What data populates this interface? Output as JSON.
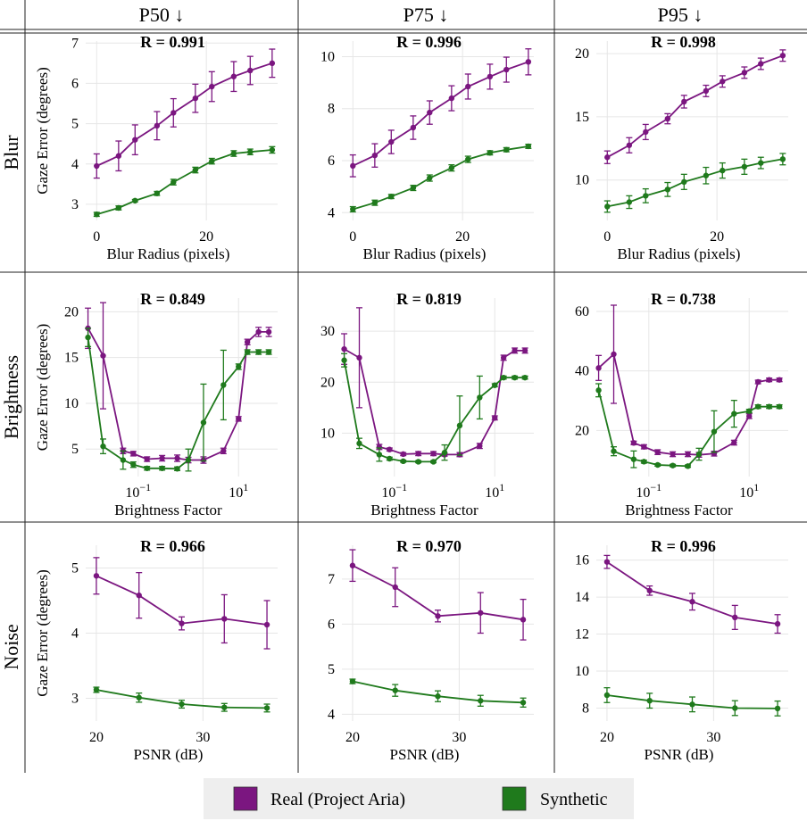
{
  "columns": [
    "P50 ↓",
    "P75 ↓",
    "P95 ↓"
  ],
  "rows": [
    "Blur",
    "Brightness",
    "Noise"
  ],
  "colors": {
    "real": "#7B1680",
    "synthetic": "#1F7A1C",
    "grid": "#e6e6e6",
    "legend_bg": "#eeeeee"
  },
  "legend": {
    "items": [
      {
        "key": "real",
        "label": "Real (Project Aria)"
      },
      {
        "key": "synthetic",
        "label": "Synthetic"
      }
    ]
  },
  "chart_data": [
    {
      "id": "blur-p50",
      "type": "line",
      "row": "Blur",
      "column": "P50 ↓",
      "title": "R = 0.991",
      "xlabel": "Blur Radius (pixels)",
      "ylabel": "Gaze Error (degrees)",
      "xscale": "linear",
      "xlim": [
        -2,
        33
      ],
      "ylim": [
        2.6,
        7.05
      ],
      "xticks": [
        0,
        20
      ],
      "yticks": [
        3,
        4,
        5,
        6,
        7
      ],
      "x": [
        0,
        4,
        7,
        11,
        14,
        18,
        21,
        25,
        28,
        32
      ],
      "series": [
        {
          "key": "real",
          "values": [
            3.95,
            4.2,
            4.6,
            4.95,
            5.27,
            5.63,
            5.92,
            6.17,
            6.32,
            6.5
          ],
          "errors": [
            0.3,
            0.37,
            0.37,
            0.35,
            0.35,
            0.35,
            0.37,
            0.37,
            0.35,
            0.35
          ]
        },
        {
          "key": "synthetic",
          "values": [
            2.75,
            2.91,
            3.09,
            3.27,
            3.55,
            3.85,
            4.07,
            4.26,
            4.3,
            4.35
          ],
          "errors": [
            0.05,
            0.05,
            0.03,
            0.05,
            0.07,
            0.07,
            0.07,
            0.07,
            0.07,
            0.08
          ]
        }
      ]
    },
    {
      "id": "blur-p75",
      "type": "line",
      "row": "Blur",
      "column": "P75 ↓",
      "title": "R = 0.996",
      "xlabel": "Blur Radius (pixels)",
      "ylabel": "",
      "xscale": "linear",
      "xlim": [
        -2,
        33
      ],
      "ylim": [
        3.7,
        10.6
      ],
      "xticks": [
        0,
        20
      ],
      "yticks": [
        4,
        6,
        8,
        10
      ],
      "x": [
        0,
        4,
        7,
        11,
        14,
        18,
        21,
        25,
        28,
        32
      ],
      "series": [
        {
          "key": "real",
          "values": [
            5.8,
            6.2,
            6.72,
            7.27,
            7.85,
            8.4,
            8.85,
            9.23,
            9.5,
            9.8
          ],
          "errors": [
            0.42,
            0.45,
            0.45,
            0.45,
            0.45,
            0.48,
            0.48,
            0.48,
            0.48,
            0.5
          ]
        },
        {
          "key": "synthetic",
          "values": [
            4.13,
            4.38,
            4.62,
            4.95,
            5.33,
            5.72,
            6.05,
            6.3,
            6.42,
            6.55
          ],
          "errors": [
            0.1,
            0.1,
            0.08,
            0.1,
            0.12,
            0.12,
            0.12,
            0.08,
            0.08,
            0.08
          ]
        }
      ]
    },
    {
      "id": "blur-p95",
      "type": "line",
      "row": "Blur",
      "column": "P95 ↓",
      "title": "R = 0.998",
      "xlabel": "Blur Radius (pixels)",
      "ylabel": "",
      "xscale": "linear",
      "xlim": [
        -2,
        33
      ],
      "ylim": [
        6.8,
        21.0
      ],
      "xticks": [
        0,
        20
      ],
      "yticks": [
        10,
        15,
        20
      ],
      "x": [
        0,
        4,
        7,
        11,
        14,
        18,
        21,
        25,
        28,
        32
      ],
      "series": [
        {
          "key": "real",
          "values": [
            11.8,
            12.75,
            13.8,
            14.85,
            16.2,
            17.05,
            17.8,
            18.5,
            19.2,
            19.85
          ],
          "errors": [
            0.5,
            0.6,
            0.6,
            0.4,
            0.5,
            0.45,
            0.45,
            0.45,
            0.45,
            0.45
          ]
        },
        {
          "key": "synthetic",
          "values": [
            7.9,
            8.25,
            8.75,
            9.25,
            9.85,
            10.35,
            10.75,
            11.05,
            11.35,
            11.65
          ],
          "errors": [
            0.45,
            0.5,
            0.55,
            0.55,
            0.6,
            0.65,
            0.6,
            0.6,
            0.45,
            0.45
          ]
        }
      ]
    },
    {
      "id": "bright-p50",
      "type": "line",
      "row": "Brightness",
      "column": "P50 ↓",
      "title": "R = 0.849",
      "xlabel": "Brightness Factor",
      "ylabel": "Gaze Error (degrees)",
      "xscale": "log",
      "xlim": [
        0.009,
        60
      ],
      "ylim": [
        2.0,
        21.5
      ],
      "xticks": [
        0.1,
        10
      ],
      "xtick_labels": [
        "10−1",
        "101"
      ],
      "yticks": [
        5,
        10,
        15,
        20
      ],
      "series": [
        {
          "key": "real",
          "x": [
            0.01,
            0.02,
            0.05,
            0.08,
            0.15,
            0.3,
            0.6,
            1.0,
            2.0,
            5.0,
            10,
            15,
            25,
            40
          ],
          "values": [
            18.2,
            15.2,
            4.8,
            4.5,
            3.9,
            4.0,
            4.0,
            3.8,
            3.8,
            4.8,
            8.3,
            16.7,
            17.8,
            17.8
          ],
          "errors": [
            2.2,
            5.8,
            0.3,
            0.25,
            0.25,
            0.3,
            0.35,
            0.3,
            0.35,
            0.3,
            0.25,
            0.3,
            0.5,
            0.5
          ]
        },
        {
          "key": "synthetic",
          "x": [
            0.01,
            0.02,
            0.05,
            0.08,
            0.15,
            0.3,
            0.6,
            1.0,
            2.0,
            5.0,
            10,
            15,
            25,
            40
          ],
          "values": [
            17.2,
            5.3,
            3.8,
            3.3,
            2.9,
            2.9,
            2.85,
            3.8,
            7.9,
            12.0,
            14.0,
            15.6,
            15.6,
            15.6
          ],
          "errors": [
            1.0,
            0.8,
            1.0,
            0.3,
            0.2,
            0.2,
            0.2,
            1.2,
            4.2,
            3.8,
            0.3,
            0.25,
            0.25,
            0.25
          ]
        }
      ]
    },
    {
      "id": "bright-p75",
      "type": "line",
      "row": "Brightness",
      "column": "P75 ↓",
      "title": "R = 0.819",
      "xlabel": "Brightness Factor",
      "ylabel": "",
      "xscale": "log",
      "xlim": [
        0.009,
        60
      ],
      "ylim": [
        1.5,
        36.5
      ],
      "xticks": [
        0.1,
        10
      ],
      "xtick_labels": [
        "10−1",
        "101"
      ],
      "yticks": [
        10,
        20,
        30
      ],
      "series": [
        {
          "key": "real",
          "x": [
            0.01,
            0.02,
            0.05,
            0.08,
            0.15,
            0.3,
            0.6,
            1.0,
            2.0,
            5.0,
            10,
            15,
            25,
            40
          ],
          "values": [
            26.5,
            24.8,
            7.3,
            6.8,
            5.9,
            6.0,
            6.0,
            5.8,
            5.8,
            7.5,
            13.0,
            24.8,
            26.2,
            26.2
          ],
          "errors": [
            3.0,
            9.8,
            0.5,
            0.3,
            0.3,
            0.4,
            0.4,
            0.3,
            0.4,
            0.5,
            0.4,
            0.5,
            0.5,
            0.5
          ]
        },
        {
          "key": "synthetic",
          "x": [
            0.01,
            0.02,
            0.05,
            0.08,
            0.15,
            0.3,
            0.6,
            1.0,
            2.0,
            5.0,
            10,
            15,
            25,
            40
          ],
          "values": [
            24.3,
            8.0,
            5.8,
            5.0,
            4.5,
            4.4,
            4.4,
            6.2,
            11.5,
            17.0,
            19.4,
            20.9,
            20.9,
            20.9
          ],
          "errors": [
            1.3,
            1.0,
            1.3,
            0.3,
            0.2,
            0.2,
            0.2,
            1.5,
            5.8,
            4.2,
            0.3,
            0.3,
            0.3,
            0.3
          ]
        }
      ]
    },
    {
      "id": "bright-p95",
      "type": "line",
      "row": "Brightness",
      "column": "P95 ↓",
      "title": "R = 0.738",
      "xlabel": "Brightness Factor",
      "ylabel": "",
      "xscale": "log",
      "xlim": [
        0.009,
        60
      ],
      "ylim": [
        4.5,
        64.5
      ],
      "xticks": [
        0.1,
        10
      ],
      "xtick_labels": [
        "10−1",
        "101"
      ],
      "yticks": [
        20,
        40,
        60
      ],
      "series": [
        {
          "key": "real",
          "x": [
            0.01,
            0.02,
            0.05,
            0.08,
            0.15,
            0.3,
            0.6,
            1.0,
            2.0,
            5.0,
            10,
            15,
            25,
            40
          ],
          "values": [
            41.0,
            45.6,
            15.8,
            14.5,
            12.7,
            12.0,
            12.0,
            11.8,
            12.2,
            15.9,
            24.8,
            36.3,
            37.0,
            37.0
          ],
          "errors": [
            4.2,
            16.5,
            0.6,
            0.7,
            0.8,
            0.8,
            0.8,
            0.8,
            0.8,
            0.8,
            0.8,
            0.6,
            0.6,
            0.6
          ]
        },
        {
          "key": "synthetic",
          "x": [
            0.01,
            0.02,
            0.05,
            0.08,
            0.15,
            0.3,
            0.6,
            1.0,
            2.0,
            5.0,
            10,
            15,
            25,
            40
          ],
          "values": [
            33.5,
            13.0,
            10.3,
            9.5,
            8.4,
            8.2,
            8.0,
            12.0,
            19.6,
            25.6,
            26.5,
            28.0,
            28.0,
            28.0
          ],
          "errors": [
            2.2,
            1.5,
            2.8,
            0.5,
            0.4,
            0.4,
            0.4,
            2.0,
            7.0,
            4.5,
            0.6,
            0.6,
            0.6,
            0.6
          ]
        }
      ]
    },
    {
      "id": "noise-p50",
      "type": "line",
      "row": "Noise",
      "column": "P50 ↓",
      "title": "R = 0.966",
      "xlabel": "PSNR (dB)",
      "ylabel": "Gaze Error (degrees)",
      "xscale": "linear",
      "xlim": [
        19,
        37
      ],
      "ylim": [
        2.65,
        5.35
      ],
      "xticks": [
        20,
        30
      ],
      "yticks": [
        3,
        4,
        5
      ],
      "x": [
        20,
        24,
        28,
        32,
        36
      ],
      "series": [
        {
          "key": "real",
          "values": [
            4.88,
            4.58,
            4.15,
            4.22,
            4.13
          ],
          "errors": [
            0.28,
            0.35,
            0.1,
            0.37,
            0.37
          ]
        },
        {
          "key": "synthetic",
          "values": [
            3.13,
            3.01,
            2.91,
            2.86,
            2.85
          ],
          "errors": [
            0.04,
            0.07,
            0.06,
            0.06,
            0.06
          ]
        }
      ]
    },
    {
      "id": "noise-p75",
      "type": "line",
      "row": "Noise",
      "column": "P75 ↓",
      "title": "R = 0.970",
      "xlabel": "PSNR (dB)",
      "ylabel": "",
      "xscale": "linear",
      "xlim": [
        19,
        37
      ],
      "ylim": [
        3.85,
        7.75
      ],
      "xticks": [
        20,
        30
      ],
      "yticks": [
        4,
        5,
        6,
        7
      ],
      "x": [
        20,
        24,
        28,
        32,
        36
      ],
      "series": [
        {
          "key": "real",
          "values": [
            7.3,
            6.82,
            6.18,
            6.25,
            6.1
          ],
          "errors": [
            0.35,
            0.43,
            0.13,
            0.45,
            0.45
          ]
        },
        {
          "key": "synthetic",
          "values": [
            4.73,
            4.53,
            4.4,
            4.3,
            4.26
          ],
          "errors": [
            0.05,
            0.13,
            0.12,
            0.12,
            0.1
          ]
        }
      ]
    },
    {
      "id": "noise-p95",
      "type": "line",
      "row": "Noise",
      "column": "P95 ↓",
      "title": "R = 0.996",
      "xlabel": "PSNR (dB)",
      "ylabel": "",
      "xscale": "linear",
      "xlim": [
        19,
        37
      ],
      "ylim": [
        7.3,
        16.8
      ],
      "xticks": [
        20,
        30
      ],
      "yticks": [
        8,
        10,
        12,
        14,
        16
      ],
      "x": [
        20,
        24,
        28,
        32,
        36
      ],
      "series": [
        {
          "key": "real",
          "values": [
            15.9,
            14.35,
            13.75,
            12.9,
            12.55
          ],
          "errors": [
            0.35,
            0.25,
            0.45,
            0.65,
            0.5
          ]
        },
        {
          "key": "synthetic",
          "values": [
            8.7,
            8.4,
            8.2,
            8.0,
            7.98
          ],
          "errors": [
            0.4,
            0.4,
            0.4,
            0.4,
            0.4
          ]
        }
      ]
    }
  ]
}
